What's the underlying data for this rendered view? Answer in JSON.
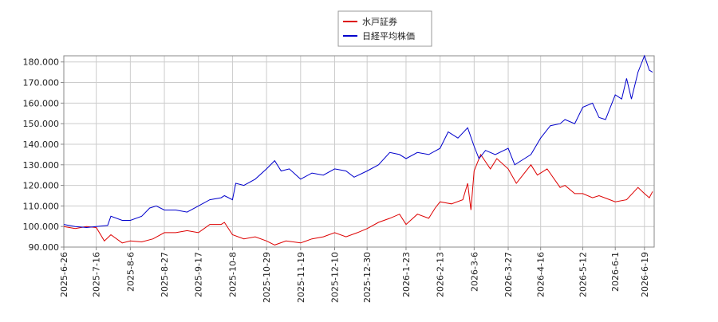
{
  "chart_data": {
    "type": "line",
    "xlim": [
      "2025-6-26",
      "2026-6-25"
    ],
    "xticks": [
      "2025-6-26",
      "2025-7-16",
      "2025-8-6",
      "2025-8-27",
      "2025-9-17",
      "2025-10-8",
      "2025-10-29",
      "2025-11-19",
      "2025-12-10",
      "2025-12-30",
      "2026-1-23",
      "2026-2-13",
      "2026-3-6",
      "2026-3-27",
      "2026-4-16",
      "2026-5-12",
      "2026-6-1",
      "2026-6-19"
    ],
    "ylim": [
      90,
      183
    ],
    "yticks": [
      {
        "value": 90,
        "label": "90.000"
      },
      {
        "value": 100,
        "label": "100.000"
      },
      {
        "value": 110,
        "label": "110.000"
      },
      {
        "value": 120,
        "label": "120.000"
      },
      {
        "value": 130,
        "label": "130.000"
      },
      {
        "value": 140,
        "label": "140.000"
      },
      {
        "value": 150,
        "label": "150.000"
      },
      {
        "value": 160,
        "label": "160.000"
      },
      {
        "value": 170,
        "label": "170.000"
      },
      {
        "value": 180,
        "label": "180.000"
      }
    ],
    "grid": true,
    "legend": "top",
    "series": [
      {
        "name": "水戸証券",
        "color": "#dd0000",
        "x": [
          "2025-6-26",
          "2025-7-3",
          "2025-7-10",
          "2025-7-16",
          "2025-7-21",
          "2025-7-25",
          "2025-8-1",
          "2025-8-6",
          "2025-8-13",
          "2025-8-20",
          "2025-8-27",
          "2025-9-3",
          "2025-9-10",
          "2025-9-17",
          "2025-9-24",
          "2025-10-1",
          "2025-10-3",
          "2025-10-8",
          "2025-10-15",
          "2025-10-22",
          "2025-10-29",
          "2025-11-3",
          "2025-11-10",
          "2025-11-19",
          "2025-11-26",
          "2025-12-3",
          "2025-12-10",
          "2025-12-17",
          "2025-12-24",
          "2025-12-30",
          "2026-1-6",
          "2026-1-13",
          "2026-1-19",
          "2026-1-23",
          "2026-1-30",
          "2026-2-6",
          "2026-2-10",
          "2026-2-13",
          "2026-2-20",
          "2026-2-27",
          "2026-3-2",
          "2026-3-4",
          "2026-3-6",
          "2026-3-10",
          "2026-3-16",
          "2026-3-20",
          "2026-3-27",
          "2026-4-1",
          "2026-4-6",
          "2026-4-10",
          "2026-4-14",
          "2026-4-20",
          "2026-4-28",
          "2026-5-1",
          "2026-5-7",
          "2026-5-12",
          "2026-5-18",
          "2026-5-22",
          "2026-6-1",
          "2026-6-8",
          "2026-6-15",
          "2026-6-19",
          "2026-6-22",
          "2026-6-24"
        ],
        "values": [
          100,
          99,
          100,
          99.5,
          93,
          96,
          92,
          93,
          92.5,
          94,
          97,
          97,
          98,
          97,
          101,
          101,
          102,
          96,
          94,
          95,
          93,
          91,
          93,
          92,
          94,
          95,
          97,
          95,
          97,
          99,
          102,
          104,
          106,
          101,
          106,
          104,
          109,
          112,
          111,
          113,
          121,
          108,
          127,
          135,
          128,
          133,
          128,
          121,
          126,
          130,
          125,
          128,
          119,
          120,
          116,
          116,
          114,
          115,
          112,
          113,
          119,
          116,
          114,
          117
        ]
      },
      {
        "name": "日経平均株価",
        "color": "#0000cc",
        "x": [
          "2025-6-26",
          "2025-7-3",
          "2025-7-10",
          "2025-7-16",
          "2025-7-23",
          "2025-7-25",
          "2025-8-1",
          "2025-8-6",
          "2025-8-13",
          "2025-8-18",
          "2025-8-22",
          "2025-8-27",
          "2025-9-3",
          "2025-9-10",
          "2025-9-17",
          "2025-9-24",
          "2025-10-1",
          "2025-10-3",
          "2025-10-8",
          "2025-10-10",
          "2025-10-15",
          "2025-10-22",
          "2025-10-29",
          "2025-11-3",
          "2025-11-7",
          "2025-11-12",
          "2025-11-19",
          "2025-11-26",
          "2025-12-3",
          "2025-12-10",
          "2025-12-17",
          "2025-12-22",
          "2025-12-30",
          "2026-1-6",
          "2026-1-13",
          "2026-1-19",
          "2026-1-23",
          "2026-1-30",
          "2026-2-6",
          "2026-2-13",
          "2026-2-18",
          "2026-2-24",
          "2026-3-2",
          "2026-3-6",
          "2026-3-9",
          "2026-3-13",
          "2026-3-19",
          "2026-3-27",
          "2026-3-31",
          "2026-4-6",
          "2026-4-10",
          "2026-4-16",
          "2026-4-22",
          "2026-4-28",
          "2026-5-1",
          "2026-5-7",
          "2026-5-12",
          "2026-5-18",
          "2026-5-22",
          "2026-5-26",
          "2026-6-1",
          "2026-6-5",
          "2026-6-8",
          "2026-6-11",
          "2026-6-15",
          "2026-6-19",
          "2026-6-22",
          "2026-6-24"
        ],
        "values": [
          101,
          100,
          99.5,
          100,
          100.5,
          105,
          103,
          103,
          105,
          109,
          110,
          108,
          108,
          107,
          110,
          113,
          114,
          115,
          113,
          121,
          120,
          123,
          128,
          132,
          127,
          128,
          123,
          126,
          125,
          128,
          127,
          124,
          127,
          130,
          136,
          135,
          133,
          136,
          135,
          138,
          146,
          143,
          148,
          139,
          133,
          137,
          135,
          138,
          130,
          133,
          135,
          143,
          149,
          150,
          152,
          150,
          158,
          160,
          153,
          152,
          164,
          162,
          172,
          162,
          175,
          183,
          176,
          175
        ]
      }
    ]
  }
}
